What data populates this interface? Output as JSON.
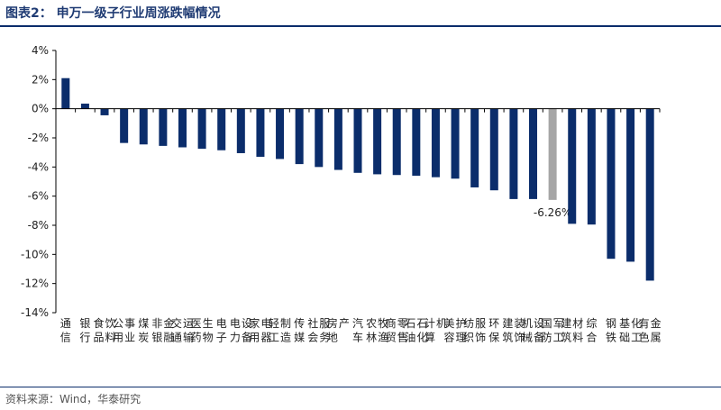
{
  "header": {
    "title": "图表2：  申万一级子行业周涨跌幅情况"
  },
  "footer": {
    "source": "资料来源：Wind，华泰研究"
  },
  "chart_data": {
    "type": "bar",
    "categories": [
      "通信",
      "银行",
      "食品饮料",
      "公用事业",
      "煤炭",
      "非银金融",
      "交通运输",
      "医药生物",
      "电子",
      "电力设备",
      "家用电器",
      "轻工制造",
      "传媒",
      "社会服务",
      "房地产",
      "汽车",
      "农林牧渔",
      "商贸零售",
      "石油石化",
      "计算机",
      "美容护理",
      "纺织服饰",
      "环保",
      "建筑装饰",
      "机械设备",
      "国防军工",
      "建筑材料",
      "综合",
      "钢铁",
      "基础化工",
      "有色金属"
    ],
    "values": [
      2.1,
      0.35,
      -0.45,
      -2.35,
      -2.45,
      -2.55,
      -2.65,
      -2.75,
      -2.85,
      -3.05,
      -3.3,
      -3.45,
      -3.8,
      -4.0,
      -4.2,
      -4.4,
      -4.5,
      -4.55,
      -4.6,
      -4.7,
      -4.8,
      -5.4,
      -5.6,
      -6.2,
      -6.2,
      -6.26,
      -7.9,
      -7.95,
      -10.3,
      -10.5,
      -11.8
    ],
    "highlight_index": 25,
    "highlight_label": "-6.26%",
    "colors": {
      "bar": "#0b2d6b",
      "highlight": "#a6a6a6",
      "axis": "#000000"
    },
    "yticks": [
      "4%",
      "2%",
      "0%",
      "-2%",
      "-4%",
      "-6%",
      "-8%",
      "-10%",
      "-12%",
      "-14%"
    ],
    "ylim": [
      -14,
      4
    ],
    "title": "",
    "xlabel": "",
    "ylabel": ""
  }
}
